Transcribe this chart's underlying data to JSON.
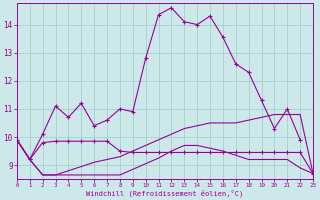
{
  "xlabel": "Windchill (Refroidissement éolien,°C)",
  "background_color": "#cce8e8",
  "grid_color": "#99cccc",
  "line_color": "#990099",
  "xlim": [
    0,
    23
  ],
  "ylim": [
    8.5,
    14.75
  ],
  "xticks": [
    0,
    1,
    2,
    3,
    4,
    5,
    6,
    7,
    8,
    9,
    10,
    11,
    12,
    13,
    14,
    15,
    16,
    17,
    18,
    19,
    20,
    21,
    22,
    23
  ],
  "yticks": [
    9,
    10,
    11,
    12,
    13,
    14
  ],
  "line1_x": [
    0,
    1,
    2,
    3,
    4,
    5,
    6,
    7,
    8,
    9,
    10,
    11,
    12,
    13,
    14,
    15,
    16,
    17,
    18,
    19,
    20,
    21,
    22
  ],
  "line1_y": [
    9.9,
    9.2,
    10.1,
    11.1,
    10.7,
    11.2,
    10.4,
    10.6,
    11.0,
    10.9,
    12.8,
    14.35,
    14.6,
    14.1,
    14.0,
    14.3,
    13.55,
    12.6,
    12.3,
    11.3,
    10.3,
    11.0,
    9.9
  ],
  "line2_x": [
    0,
    1,
    2,
    3,
    4,
    5,
    6,
    7,
    8,
    9,
    10,
    11,
    12,
    13,
    14,
    15,
    16,
    17,
    18,
    19,
    20,
    21,
    22,
    23
  ],
  "line2_y": [
    9.9,
    9.2,
    9.8,
    9.85,
    9.85,
    9.85,
    9.85,
    9.85,
    9.5,
    9.45,
    9.45,
    9.45,
    9.45,
    9.45,
    9.45,
    9.45,
    9.45,
    9.45,
    9.45,
    9.45,
    9.45,
    9.45,
    9.45,
    8.7
  ],
  "line3_x": [
    0,
    1,
    2,
    3,
    4,
    5,
    6,
    7,
    8,
    9,
    10,
    11,
    12,
    13,
    14,
    15,
    16,
    17,
    18,
    19,
    20,
    21,
    22,
    23
  ],
  "line3_y": [
    9.9,
    9.2,
    8.65,
    8.65,
    8.65,
    8.65,
    8.65,
    8.65,
    8.65,
    8.85,
    9.05,
    9.25,
    9.5,
    9.7,
    9.7,
    9.6,
    9.5,
    9.35,
    9.2,
    9.2,
    9.2,
    9.2,
    8.9,
    8.7
  ],
  "line4_x": [
    0,
    1,
    2,
    3,
    4,
    5,
    6,
    7,
    8,
    9,
    10,
    11,
    12,
    13,
    14,
    15,
    16,
    17,
    18,
    19,
    20,
    21,
    22,
    23
  ],
  "line4_y": [
    9.9,
    9.2,
    8.65,
    8.65,
    8.8,
    8.95,
    9.1,
    9.2,
    9.3,
    9.5,
    9.7,
    9.9,
    10.1,
    10.3,
    10.4,
    10.5,
    10.5,
    10.5,
    10.6,
    10.7,
    10.8,
    10.8,
    10.8,
    8.7
  ]
}
